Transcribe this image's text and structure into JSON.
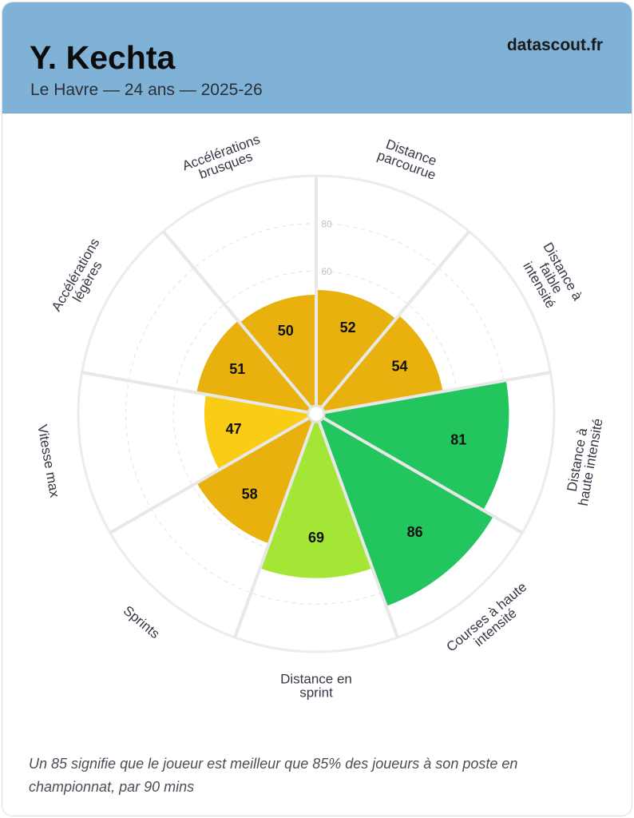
{
  "header": {
    "player_name": "Y. Kechta",
    "subtitle": "Le Havre — 24 ans — 2025-26",
    "brand": "datascout.fr",
    "background_color": "#7fb2d6"
  },
  "chart_data": {
    "type": "polar-bar",
    "categories": [
      [
        "Distance",
        "parcourue"
      ],
      [
        "Distance à",
        "faible",
        "intensité"
      ],
      [
        "Distance à",
        "haute intensité"
      ],
      [
        "Courses à haute",
        "intensité"
      ],
      [
        "Distance en",
        "sprint"
      ],
      [
        "Sprints"
      ],
      [
        "Vitesse max"
      ],
      [
        "Accélérations",
        "légères"
      ],
      [
        "Accélérations",
        "brusques"
      ]
    ],
    "values": [
      52,
      54,
      81,
      86,
      69,
      58,
      47,
      51,
      50
    ],
    "value_labels": [
      "52",
      "54",
      "81",
      "86",
      "69",
      "58",
      "47",
      "51",
      "50"
    ],
    "colors": [
      "#e8b10e",
      "#e8b10e",
      "#22c55e",
      "#22c55e",
      "#a3e635",
      "#e8b10e",
      "#facc15",
      "#e8b10e",
      "#e8b10e"
    ],
    "radial_range": [
      0,
      100
    ],
    "radial_ticks": [
      "60",
      "80"
    ],
    "radial_tick_values": [
      60,
      80
    ]
  },
  "footnote": "Un 85 signifie que le joueur est meilleur que 85% des joueurs à son poste en championnat, par 90 mins"
}
